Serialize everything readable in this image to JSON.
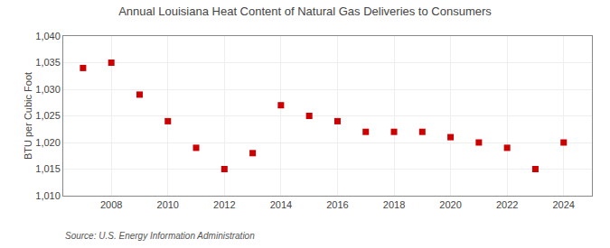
{
  "chart_data": {
    "type": "scatter",
    "title": "Annual Louisiana Heat Content of Natural Gas Deliveries to Consumers",
    "ylabel": "BTU per Cubic Foot",
    "annotations": [
      "Source: U.S. Energy Information Administration"
    ],
    "x": [
      2007,
      2008,
      2009,
      2010,
      2011,
      2012,
      2013,
      2014,
      2015,
      2016,
      2017,
      2018,
      2019,
      2020,
      2021,
      2022,
      2023,
      2024
    ],
    "values": [
      1034,
      1035,
      1029,
      1024,
      1019,
      1015,
      1018,
      1027,
      1025,
      1024,
      1022,
      1022,
      1022,
      1021,
      1020,
      1019,
      1015,
      1020
    ],
    "xlim": [
      2006.3,
      2025.0
    ],
    "xticks": [
      2008,
      2010,
      2012,
      2014,
      2016,
      2018,
      2020,
      2022,
      2024
    ],
    "ylim": [
      1010,
      1040
    ],
    "yticks": [
      {
        "value": 1010,
        "label": "1,010"
      },
      {
        "value": 1015,
        "label": "1,015"
      },
      {
        "value": 1020,
        "label": "1,020"
      },
      {
        "value": 1025,
        "label": "1,025"
      },
      {
        "value": 1030,
        "label": "1,030"
      },
      {
        "value": 1035,
        "label": "1,035"
      },
      {
        "value": 1040,
        "label": "1,040"
      }
    ],
    "color": "#cc0000",
    "marker": "square",
    "grid": true
  }
}
